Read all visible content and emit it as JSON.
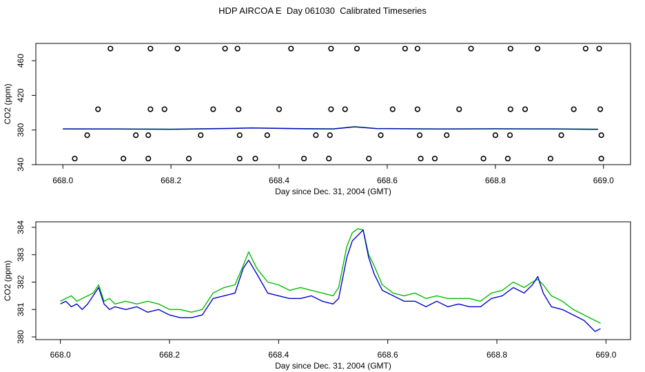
{
  "title": "HDP AIRCOA E  Day 061030  Calibrated Timeseries",
  "colors": {
    "blue": "#0000cc",
    "green": "#00bb00",
    "black": "#000000"
  },
  "chart_data": [
    {
      "type": "scatter",
      "xlabel": "Day since Dec. 31, 2004 (GMT)",
      "ylabel": "CO2 (ppm)",
      "xlim": [
        667.95,
        669.05
      ],
      "ylim": [
        340,
        480
      ],
      "xticks": [
        "668.0",
        "668.2",
        "668.4",
        "668.6",
        "668.8",
        "669.0"
      ],
      "xtick_values": [
        668.0,
        668.2,
        668.4,
        668.6,
        668.8,
        669.0
      ],
      "yticks": [
        "340",
        "380",
        "420",
        "460"
      ],
      "ytick_values": [
        340,
        380,
        420,
        460
      ],
      "grid": false,
      "series": [
        {
          "marker": "open-circle",
          "color": "#000000",
          "x": [
            668.088,
            668.162,
            668.212,
            668.3,
            668.323,
            668.422,
            668.496,
            668.544,
            668.633,
            668.656,
            668.755,
            668.828,
            668.878,
            668.967,
            668.992,
            668.065,
            668.162,
            668.188,
            668.278,
            668.325,
            668.4,
            668.496,
            668.522,
            668.61,
            668.656,
            668.733,
            668.828,
            668.855,
            668.945,
            668.994,
            668.045,
            668.135,
            668.158,
            668.255,
            668.327,
            668.378,
            668.468,
            668.494,
            668.588,
            668.66,
            668.71,
            668.8,
            668.827,
            668.922,
            668.996,
            668.022,
            668.112,
            668.158,
            668.233,
            668.327,
            668.356,
            668.446,
            668.492,
            668.566,
            668.662,
            668.688,
            668.778,
            668.823,
            668.902,
            668.996
          ],
          "y": [
            474,
            474,
            474,
            474,
            474,
            474,
            474,
            474,
            474,
            474,
            474,
            474,
            474,
            474,
            474,
            404,
            404,
            404,
            404,
            404,
            404,
            404,
            404,
            404,
            404,
            404,
            404,
            404,
            404,
            404,
            374,
            374,
            374,
            374,
            374,
            374,
            374,
            374,
            374,
            374,
            374,
            374,
            374,
            374,
            374,
            347,
            347,
            347,
            347,
            347,
            347,
            347,
            347,
            347,
            347,
            347,
            347,
            347,
            347,
            347
          ]
        },
        {
          "marker": "line",
          "color": "#00bb00",
          "x": [
            668.0,
            668.1,
            668.2,
            668.3,
            668.35,
            668.45,
            668.5,
            668.54,
            668.58,
            668.7,
            668.8,
            668.9,
            668.99
          ],
          "y": [
            381.4,
            381.3,
            381.0,
            381.9,
            382.5,
            381.6,
            381.4,
            383.9,
            381.8,
            381.3,
            381.5,
            381.4,
            381.0
          ]
        },
        {
          "marker": "line",
          "color": "#0000cc",
          "x": [
            668.0,
            668.1,
            668.2,
            668.3,
            668.35,
            668.45,
            668.5,
            668.54,
            668.58,
            668.7,
            668.8,
            668.9,
            668.99
          ],
          "y": [
            381.2,
            381.1,
            380.8,
            381.6,
            382.3,
            381.4,
            381.2,
            383.6,
            381.6,
            381.1,
            381.3,
            381.2,
            380.7
          ]
        }
      ]
    },
    {
      "type": "line",
      "xlabel": "Day since Dec. 31, 2004 (GMT)",
      "ylabel": "CO2 (ppm)",
      "xlim": [
        667.955,
        669.045
      ],
      "ylim": [
        379.9,
        384.2
      ],
      "xticks": [
        "668.0",
        "668.2",
        "668.4",
        "668.6",
        "668.8",
        "669.0"
      ],
      "xtick_values": [
        668.0,
        668.2,
        668.4,
        668.6,
        668.8,
        669.0
      ],
      "yticks": [
        "380",
        "381",
        "382",
        "383",
        "384"
      ],
      "ytick_values": [
        380,
        381,
        382,
        383,
        384
      ],
      "grid": false,
      "series": [
        {
          "color": "#00bb00",
          "x": [
            668.0,
            668.01,
            668.02,
            668.03,
            668.04,
            668.05,
            668.06,
            668.07,
            668.08,
            668.09,
            668.1,
            668.12,
            668.14,
            668.16,
            668.18,
            668.2,
            668.22,
            668.24,
            668.26,
            668.28,
            668.3,
            668.32,
            668.335,
            668.345,
            668.36,
            668.38,
            668.4,
            668.42,
            668.44,
            668.46,
            668.48,
            668.5,
            668.51,
            668.525,
            668.535,
            668.545,
            668.555,
            668.565,
            668.575,
            668.59,
            668.61,
            668.63,
            668.65,
            668.67,
            668.69,
            668.71,
            668.73,
            668.75,
            668.77,
            668.79,
            668.81,
            668.83,
            668.85,
            668.865,
            668.875,
            668.885,
            668.9,
            668.92,
            668.94,
            668.96,
            668.98,
            668.99
          ],
          "y": [
            381.3,
            381.4,
            381.5,
            381.3,
            381.4,
            381.5,
            381.6,
            381.9,
            381.3,
            381.4,
            381.2,
            381.3,
            381.2,
            381.3,
            381.2,
            381.0,
            381.0,
            380.9,
            381.0,
            381.6,
            381.8,
            381.9,
            382.6,
            383.1,
            382.5,
            382.0,
            381.9,
            381.7,
            381.8,
            381.7,
            381.6,
            381.5,
            381.8,
            383.3,
            383.8,
            383.95,
            383.9,
            383.0,
            382.6,
            381.9,
            381.6,
            381.5,
            381.6,
            381.4,
            381.5,
            381.4,
            381.4,
            381.4,
            381.3,
            381.6,
            381.7,
            382.0,
            381.8,
            382.0,
            382.1,
            381.9,
            381.5,
            381.3,
            381.0,
            380.8,
            380.6,
            380.5
          ]
        },
        {
          "color": "#0000cc",
          "x": [
            668.0,
            668.01,
            668.02,
            668.03,
            668.04,
            668.05,
            668.06,
            668.07,
            668.08,
            668.09,
            668.1,
            668.12,
            668.14,
            668.16,
            668.18,
            668.2,
            668.22,
            668.24,
            668.26,
            668.28,
            668.3,
            668.32,
            668.335,
            668.345,
            668.36,
            668.38,
            668.4,
            668.42,
            668.44,
            668.46,
            668.48,
            668.5,
            668.51,
            668.525,
            668.535,
            668.545,
            668.555,
            668.565,
            668.575,
            668.59,
            668.61,
            668.63,
            668.65,
            668.67,
            668.69,
            668.71,
            668.73,
            668.75,
            668.77,
            668.79,
            668.81,
            668.83,
            668.85,
            668.865,
            668.875,
            668.885,
            668.9,
            668.92,
            668.94,
            668.96,
            668.98,
            668.99
          ],
          "y": [
            381.2,
            381.3,
            381.1,
            381.2,
            381.0,
            381.2,
            381.5,
            381.8,
            381.2,
            381.0,
            381.1,
            381.0,
            381.1,
            380.9,
            381.0,
            380.8,
            380.7,
            380.7,
            380.8,
            381.4,
            381.5,
            381.6,
            382.5,
            382.8,
            382.3,
            381.6,
            381.5,
            381.4,
            381.4,
            381.5,
            381.3,
            381.2,
            381.4,
            382.9,
            383.5,
            383.7,
            383.9,
            382.9,
            382.3,
            381.7,
            381.5,
            381.3,
            381.3,
            381.1,
            381.3,
            381.1,
            381.2,
            381.1,
            381.1,
            381.4,
            381.5,
            381.8,
            381.6,
            381.9,
            382.2,
            381.6,
            381.1,
            381.0,
            380.8,
            380.6,
            380.2,
            380.3
          ]
        }
      ]
    }
  ]
}
